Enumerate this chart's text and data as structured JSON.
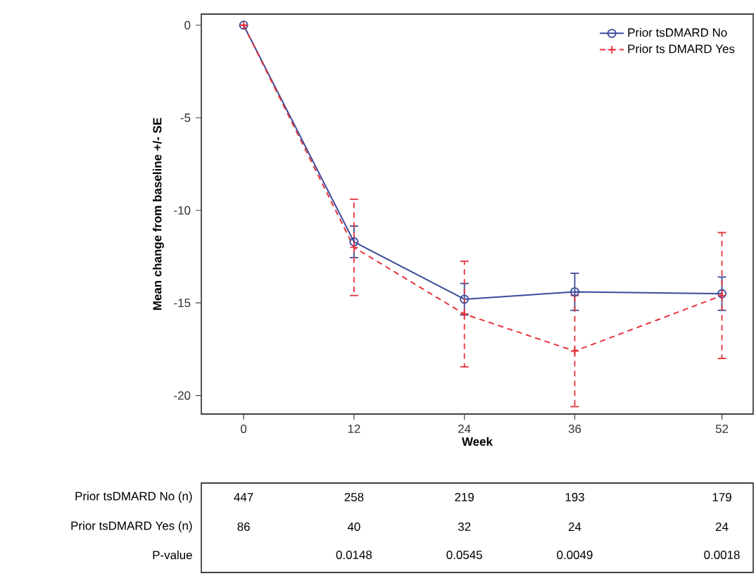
{
  "chart_data": {
    "type": "line",
    "xlabel": "Week",
    "ylabel": "Mean change from baseline +/- SE",
    "x": [
      0,
      12,
      24,
      36,
      52
    ],
    "series": [
      {
        "name": "Prior tsDMARD No",
        "color": "#3a4a9a",
        "marker": "circle",
        "line_style": "solid",
        "values": [
          0,
          -11.7,
          -14.8,
          -14.4,
          -14.5
        ],
        "errors": [
          null,
          0.85,
          0.85,
          1.0,
          0.9
        ]
      },
      {
        "name": "Prior ts DMARD Yes",
        "color": "#e8323a",
        "marker": "cross",
        "line_style": "dashed",
        "values": [
          0,
          -12.0,
          -15.6,
          -17.6,
          -14.6
        ],
        "errors": [
          null,
          2.6,
          2.85,
          3.0,
          3.4
        ]
      }
    ],
    "xlim": [
      -4.6,
      55.4
    ],
    "xticks": [
      0,
      12,
      24,
      36,
      52
    ],
    "ylim": [
      -21,
      0.6
    ],
    "yticks": [
      -20,
      -15,
      -10,
      -5,
      0
    ],
    "grid": false,
    "legend": "top right",
    "annotations": [
      "Prior tsDMARD No (n)",
      "447",
      "258",
      "219",
      "193",
      "179",
      "Prior tsDMARD Yes (n)",
      "86",
      "40",
      "32",
      "24",
      "24",
      "P-value",
      "0.0148",
      "0.0545",
      "0.0049",
      "0.0018"
    ]
  }
}
